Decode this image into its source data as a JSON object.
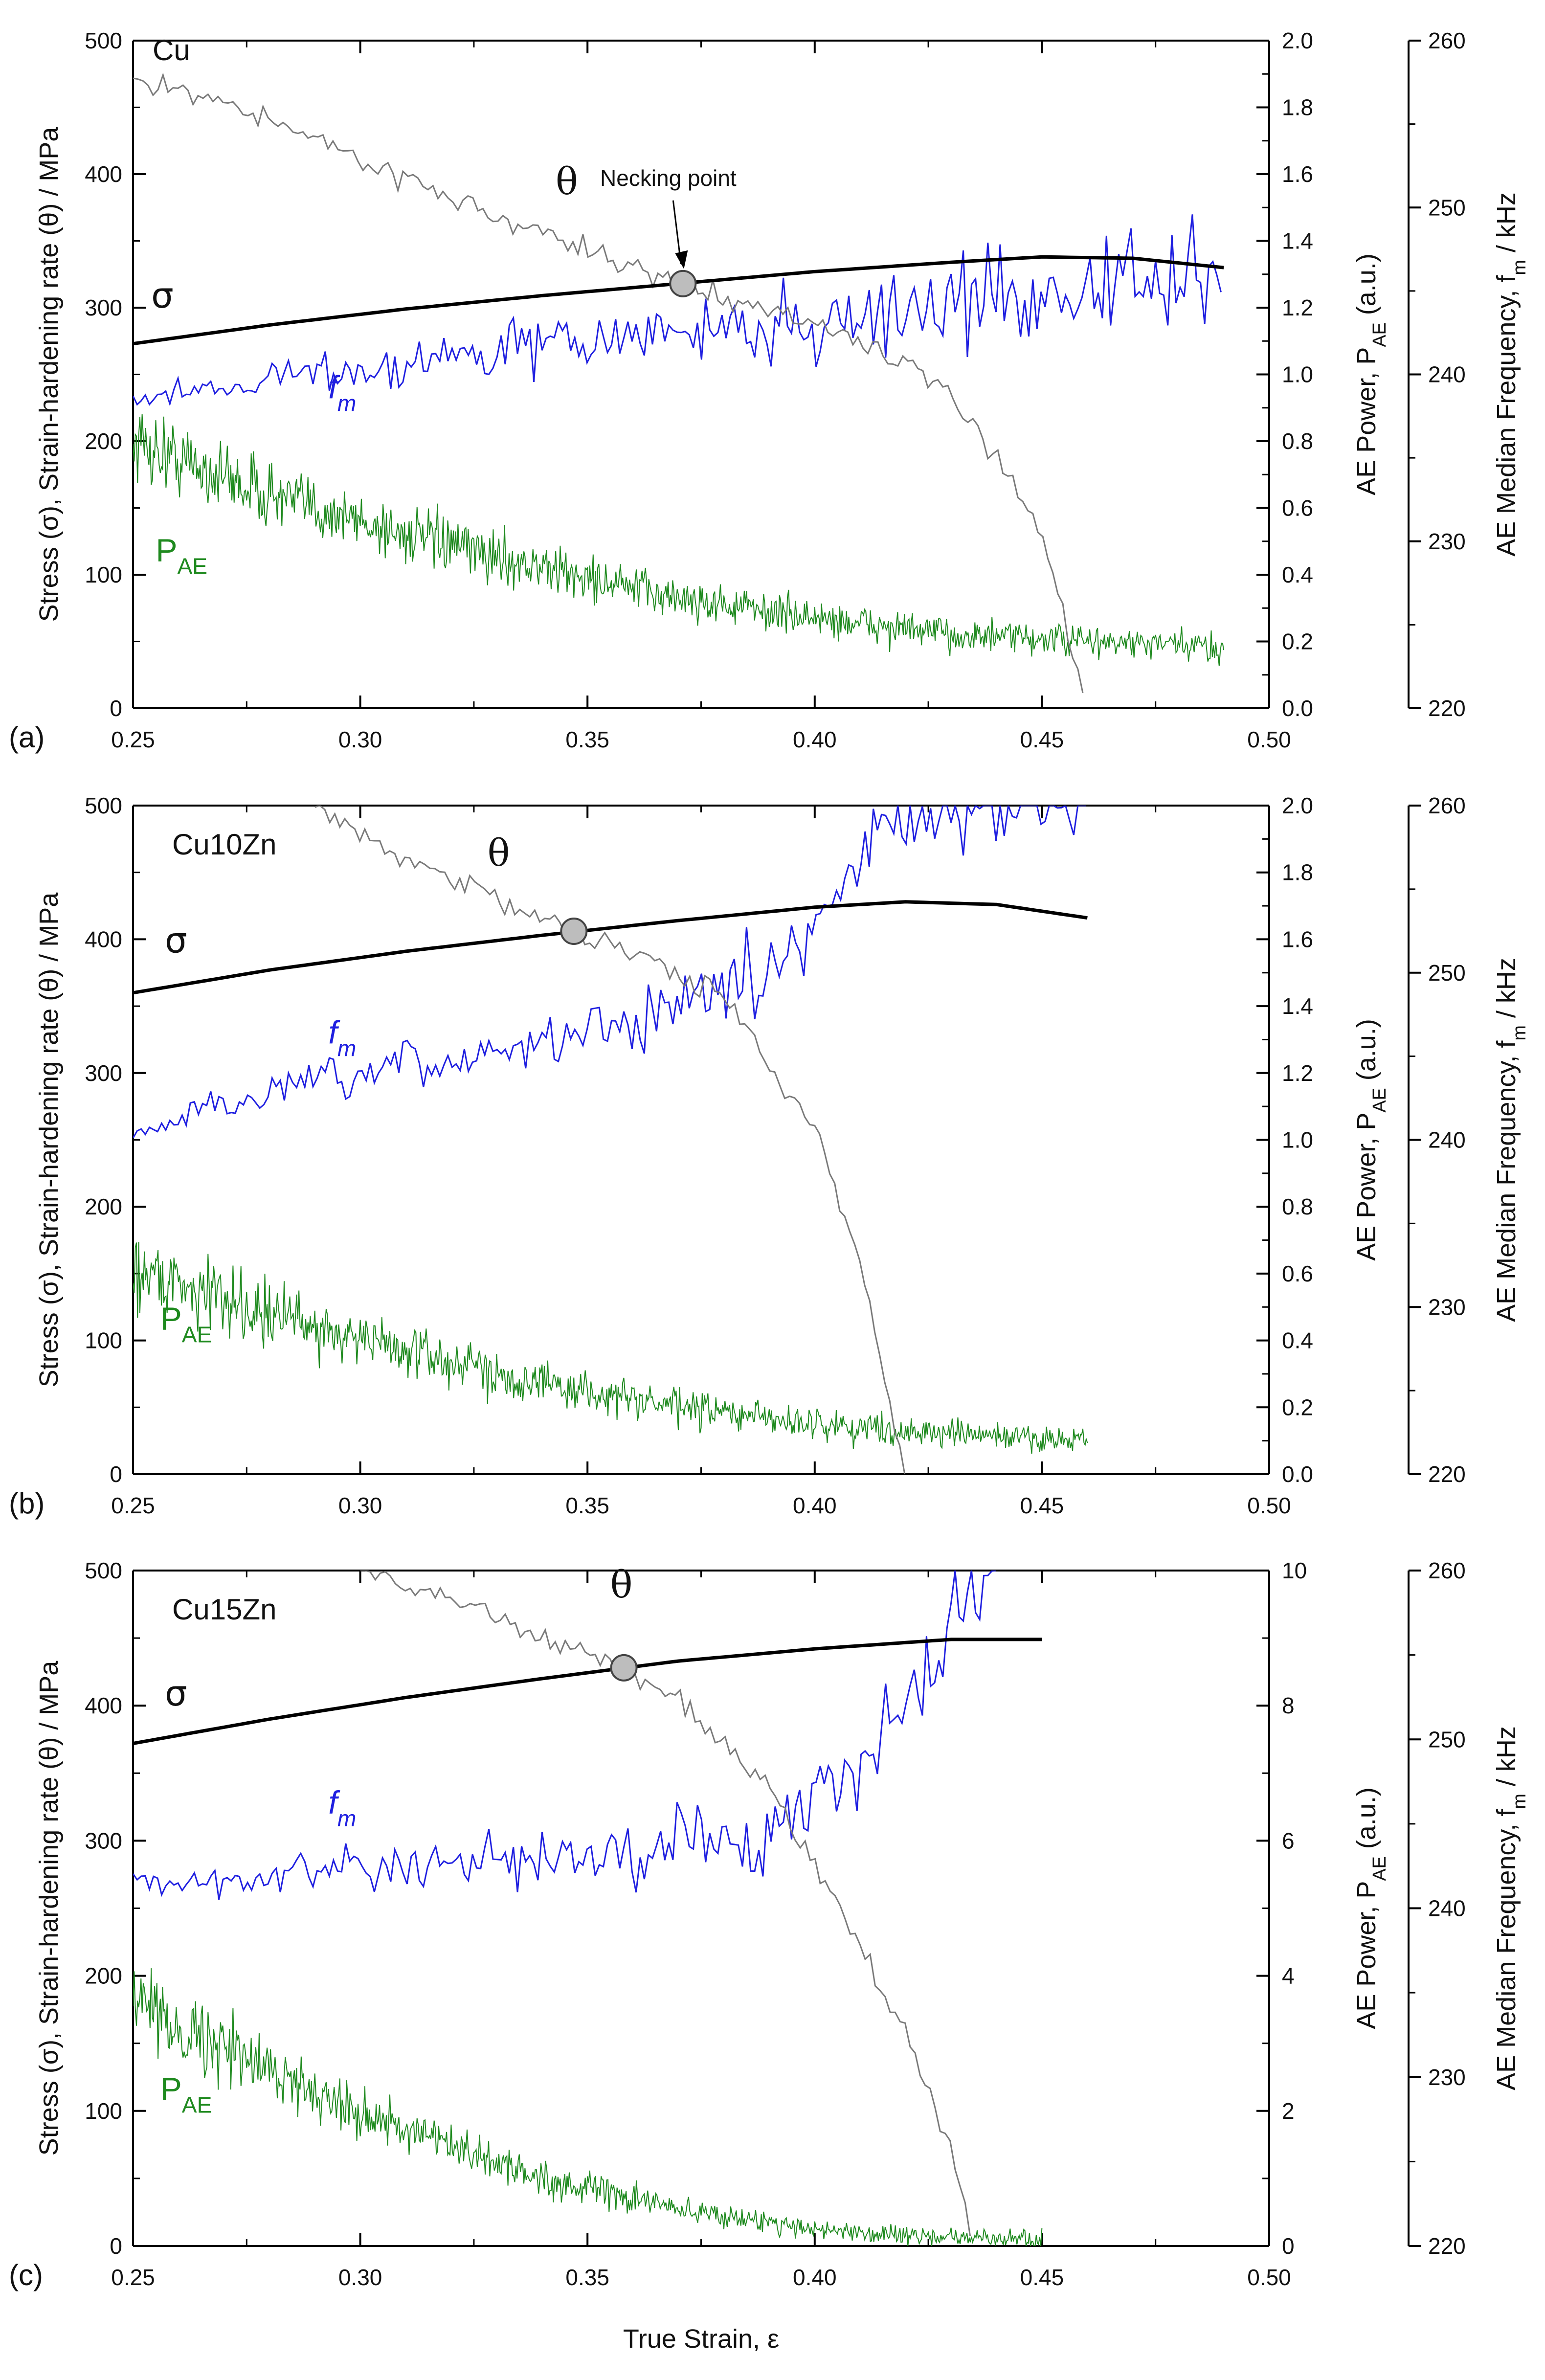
{
  "figure": {
    "x_axis_title": "True Strain, ε",
    "x_ticks": [
      "0.25",
      "0.30",
      "0.35",
      "0.40",
      "0.45",
      "0.50"
    ],
    "left_axis_title": "Stress (σ), Strain-hardening rate (θ) / MPa",
    "left_ticks": [
      "0",
      "100",
      "200",
      "300",
      "400",
      "500"
    ],
    "power_axis_title_main": "AE Power, P",
    "power_axis_title_sub": "AE",
    "power_axis_title_end": " (a.u.)",
    "freq_axis_title_main": "AE Median Frequency, f",
    "freq_axis_title_sub": "m",
    "freq_axis_title_end": " / kHz",
    "freq_ticks": [
      "220",
      "230",
      "240",
      "250",
      "260"
    ],
    "colors": {
      "sigma": "#000000",
      "theta": "#7a7a7a",
      "fm": "#1f1fe0",
      "pae": "#1f8a1f",
      "marker": "#bdbdbd"
    }
  },
  "chart_data": [
    {
      "panel_label": "(a)",
      "sample": "Cu",
      "type": "line",
      "xlim": [
        0.25,
        0.5
      ],
      "ylim_left": [
        0,
        500
      ],
      "ylim_power": [
        0,
        2.0
      ],
      "power_ticks": [
        "0.0",
        "0.2",
        "0.4",
        "0.6",
        "0.8",
        "1.0",
        "1.2",
        "1.4",
        "1.6",
        "1.8",
        "2.0"
      ],
      "ylim_freq": [
        220,
        260
      ],
      "labels": {
        "theta": "θ",
        "sigma": "σ",
        "fm_main": "f",
        "fm_sub": "m",
        "pae_main": "P",
        "pae_sub": "AE",
        "annotation": "Necking point"
      },
      "necking_point": {
        "x": 0.371,
        "y": 318
      },
      "series": [
        {
          "name": "σ (stress)",
          "x": [
            0.25,
            0.28,
            0.31,
            0.34,
            0.37,
            0.4,
            0.43,
            0.45,
            0.47,
            0.49
          ],
          "values": [
            273,
            287,
            299,
            309,
            318,
            327,
            334,
            338,
            337,
            330
          ]
        },
        {
          "name": "θ (strain-hardening rate)",
          "x": [
            0.25,
            0.27,
            0.3,
            0.33,
            0.35,
            0.37,
            0.4,
            0.42,
            0.43,
            0.44,
            0.45,
            0.46
          ],
          "values": [
            470,
            455,
            412,
            368,
            342,
            318,
            288,
            260,
            230,
            190,
            130,
            0
          ]
        },
        {
          "name": "f_m (AE median frequency, kHz)",
          "x": [
            0.25,
            0.28,
            0.31,
            0.34,
            0.37,
            0.4,
            0.43,
            0.46,
            0.49
          ],
          "values": [
            238.5,
            239.8,
            240.6,
            241.8,
            242.5,
            243.0,
            244.2,
            245.2,
            245.5
          ]
        },
        {
          "name": "P_AE (AE power, a.u.)",
          "x": [
            0.25,
            0.28,
            0.31,
            0.34,
            0.37,
            0.4,
            0.43,
            0.46,
            0.49
          ],
          "values": [
            0.8,
            0.64,
            0.52,
            0.42,
            0.33,
            0.27,
            0.22,
            0.2,
            0.18
          ]
        }
      ]
    },
    {
      "panel_label": "(b)",
      "sample": "Cu10Zn",
      "type": "line",
      "xlim": [
        0.25,
        0.5
      ],
      "ylim_left": [
        0,
        500
      ],
      "ylim_power": [
        0,
        2.0
      ],
      "power_ticks": [
        "0.0",
        "0.2",
        "0.4",
        "0.6",
        "0.8",
        "1.0",
        "1.2",
        "1.4",
        "1.6",
        "1.8",
        "2.0"
      ],
      "ylim_freq": [
        220,
        260
      ],
      "labels": {
        "theta": "θ",
        "sigma": "σ",
        "fm_main": "f",
        "fm_sub": "m",
        "pae_main": "P",
        "pae_sub": "AE"
      },
      "necking_point": {
        "x": 0.347,
        "y": 406
      },
      "series": [
        {
          "name": "σ (stress)",
          "x": [
            0.25,
            0.28,
            0.31,
            0.34,
            0.37,
            0.4,
            0.42,
            0.44,
            0.46
          ],
          "values": [
            360,
            377,
            391,
            403,
            414,
            424,
            428,
            426,
            416
          ]
        },
        {
          "name": "θ (strain-hardening rate)",
          "x": [
            0.29,
            0.31,
            0.33,
            0.347,
            0.36,
            0.38,
            0.4,
            0.41,
            0.42
          ],
          "values": [
            500,
            460,
            430,
            406,
            392,
            355,
            260,
            160,
            0
          ]
        },
        {
          "name": "f_m (AE median frequency, kHz)",
          "x": [
            0.25,
            0.27,
            0.3,
            0.33,
            0.36,
            0.38,
            0.4,
            0.41,
            0.42,
            0.46
          ],
          "values": [
            240.2,
            242.2,
            243.8,
            245.2,
            247.2,
            248.8,
            252.0,
            257.5,
            260.0,
            260.0
          ]
        },
        {
          "name": "P_AE (AE power, a.u.)",
          "x": [
            0.25,
            0.28,
            0.31,
            0.34,
            0.37,
            0.4,
            0.43,
            0.46
          ],
          "values": [
            0.62,
            0.48,
            0.37,
            0.27,
            0.2,
            0.15,
            0.12,
            0.1
          ]
        }
      ]
    },
    {
      "panel_label": "(c)",
      "sample": "Cu15Zn",
      "type": "line",
      "xlim": [
        0.25,
        0.5
      ],
      "ylim_left": [
        0,
        500
      ],
      "ylim_power": [
        0,
        10
      ],
      "power_ticks": [
        "0",
        "2",
        "4",
        "6",
        "8",
        "10"
      ],
      "ylim_freq": [
        220,
        260
      ],
      "labels": {
        "theta": "θ",
        "sigma": "σ",
        "fm_main": "f",
        "fm_sub": "m",
        "pae_main": "P",
        "pae_sub": "AE"
      },
      "necking_point": {
        "x": 0.358,
        "y": 428
      },
      "series": [
        {
          "name": "σ (stress)",
          "x": [
            0.25,
            0.28,
            0.31,
            0.34,
            0.37,
            0.4,
            0.43,
            0.45
          ],
          "values": [
            372,
            390,
            406,
            420,
            433,
            442,
            449,
            449
          ]
        },
        {
          "name": "θ (strain-hardening rate)",
          "x": [
            0.3,
            0.32,
            0.34,
            0.358,
            0.37,
            0.39,
            0.4,
            0.42,
            0.43,
            0.435
          ],
          "values": [
            500,
            480,
            450,
            428,
            405,
            340,
            280,
            160,
            70,
            0
          ]
        },
        {
          "name": "f_m (AE median frequency, kHz)",
          "x": [
            0.25,
            0.28,
            0.31,
            0.34,
            0.37,
            0.39,
            0.4,
            0.41,
            0.42,
            0.43,
            0.44
          ],
          "values": [
            241.5,
            241.8,
            242.3,
            242.8,
            243.5,
            244.5,
            246.0,
            248.0,
            252.0,
            257.0,
            260.0
          ]
        },
        {
          "name": "P_AE (AE power, a.u.)",
          "x": [
            0.25,
            0.28,
            0.31,
            0.34,
            0.37,
            0.4,
            0.43,
            0.45
          ],
          "values": [
            3.6,
            2.6,
            1.7,
            1.0,
            0.55,
            0.25,
            0.12,
            0.1
          ]
        }
      ]
    }
  ]
}
